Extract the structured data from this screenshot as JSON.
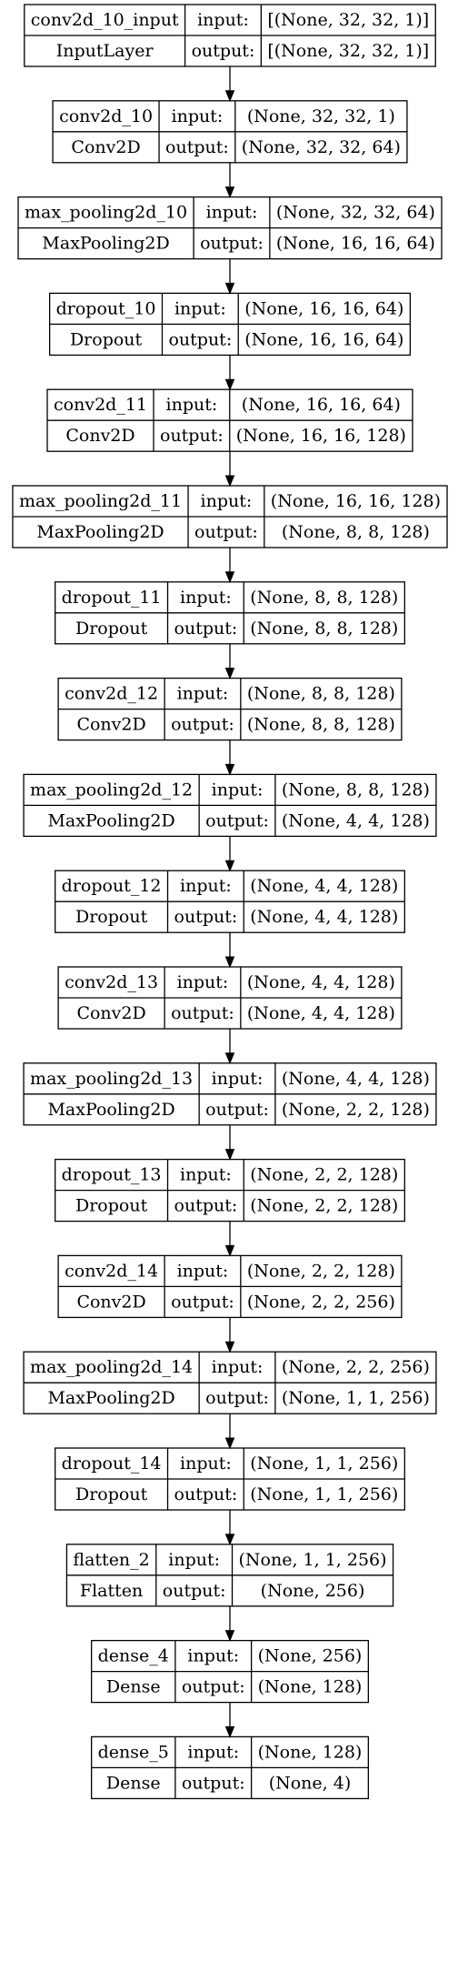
{
  "labels": {
    "input": "input:",
    "output": "output:"
  },
  "nodes": [
    {
      "name": "conv2d_10_input",
      "type": "InputLayer",
      "input": "[(None, 32, 32, 1)]",
      "output": "[(None, 32, 32, 1)]"
    },
    {
      "name": "conv2d_10",
      "type": "Conv2D",
      "input": "(None, 32, 32, 1)",
      "output": "(None, 32, 32, 64)"
    },
    {
      "name": "max_pooling2d_10",
      "type": "MaxPooling2D",
      "input": "(None, 32, 32, 64)",
      "output": "(None, 16, 16, 64)"
    },
    {
      "name": "dropout_10",
      "type": "Dropout",
      "input": "(None, 16, 16, 64)",
      "output": "(None, 16, 16, 64)"
    },
    {
      "name": "conv2d_11",
      "type": "Conv2D",
      "input": "(None, 16, 16, 64)",
      "output": "(None, 16, 16, 128)"
    },
    {
      "name": "max_pooling2d_11",
      "type": "MaxPooling2D",
      "input": "(None, 16, 16, 128)",
      "output": "(None, 8, 8, 128)"
    },
    {
      "name": "dropout_11",
      "type": "Dropout",
      "input": "(None, 8, 8, 128)",
      "output": "(None, 8, 8, 128)"
    },
    {
      "name": "conv2d_12",
      "type": "Conv2D",
      "input": "(None, 8, 8, 128)",
      "output": "(None, 8, 8, 128)"
    },
    {
      "name": "max_pooling2d_12",
      "type": "MaxPooling2D",
      "input": "(None, 8, 8, 128)",
      "output": "(None, 4, 4, 128)"
    },
    {
      "name": "dropout_12",
      "type": "Dropout",
      "input": "(None, 4, 4, 128)",
      "output": "(None, 4, 4, 128)"
    },
    {
      "name": "conv2d_13",
      "type": "Conv2D",
      "input": "(None, 4, 4, 128)",
      "output": "(None, 4, 4, 128)"
    },
    {
      "name": "max_pooling2d_13",
      "type": "MaxPooling2D",
      "input": "(None, 4, 4, 128)",
      "output": "(None, 2, 2, 128)"
    },
    {
      "name": "dropout_13",
      "type": "Dropout",
      "input": "(None, 2, 2, 128)",
      "output": "(None, 2, 2, 128)"
    },
    {
      "name": "conv2d_14",
      "type": "Conv2D",
      "input": "(None, 2, 2, 128)",
      "output": "(None, 2, 2, 256)"
    },
    {
      "name": "max_pooling2d_14",
      "type": "MaxPooling2D",
      "input": "(None, 2, 2, 256)",
      "output": "(None, 1, 1, 256)"
    },
    {
      "name": "dropout_14",
      "type": "Dropout",
      "input": "(None, 1, 1, 256)",
      "output": "(None, 1, 1, 256)"
    },
    {
      "name": "flatten_2",
      "type": "Flatten",
      "input": "(None, 1, 1, 256)",
      "output": "(None, 256)"
    },
    {
      "name": "dense_4",
      "type": "Dense",
      "input": "(None, 256)",
      "output": "(None, 128)"
    },
    {
      "name": "dense_5",
      "type": "Dense",
      "input": "(None, 128)",
      "output": "(None, 4)"
    }
  ]
}
